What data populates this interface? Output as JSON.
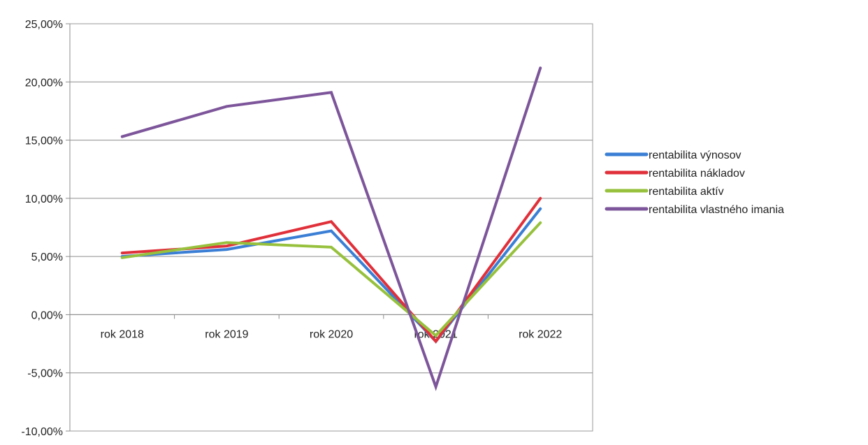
{
  "chart_data": {
    "type": "line",
    "title": "",
    "xlabel": "",
    "ylabel": "",
    "categories": [
      "rok 2018",
      "rok 2019",
      "rok 2020",
      "rok 2021",
      "rok 2022"
    ],
    "y_ticks": [
      "25,00%",
      "20,00%",
      "15,00%",
      "10,00%",
      "5,00%",
      "0,00%",
      "-5,00%",
      "-10,00%"
    ],
    "ylim": [
      -10,
      25
    ],
    "grid": true,
    "legend_position": "right",
    "series": [
      {
        "name": "rentabilita výnosov",
        "color": "#3a7fd5",
        "values": [
          5.0,
          5.6,
          7.2,
          -2.3,
          9.1
        ]
      },
      {
        "name": "rentabilita nákladov",
        "color": "#e0303a",
        "values": [
          5.3,
          5.9,
          8.0,
          -2.3,
          10.0
        ]
      },
      {
        "name": "rentabilita aktív",
        "color": "#97c13d",
        "values": [
          4.9,
          6.2,
          5.8,
          -1.8,
          7.9
        ]
      },
      {
        "name": "rentabilita vlastného imania",
        "color": "#7d559a",
        "values": [
          15.3,
          17.9,
          19.1,
          -6.2,
          21.2
        ]
      }
    ]
  }
}
